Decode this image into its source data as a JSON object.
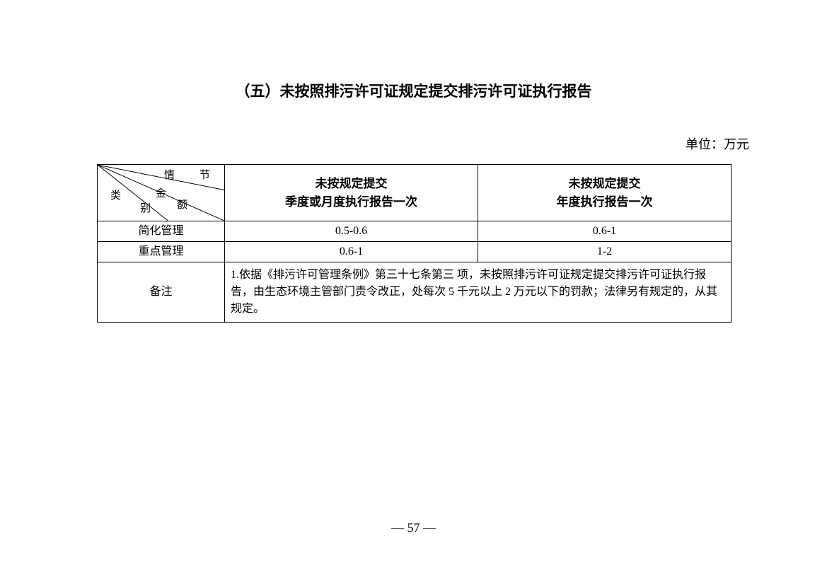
{
  "title": "（五）未按照排污许可证规定提交排污许可证执行报告",
  "unit": "单位：万元",
  "table": {
    "diagonal_labels": {
      "top1": "情",
      "top2": "节",
      "mid1": "金",
      "mid2": "额",
      "left1": "类",
      "left2": "别"
    },
    "col_headers": [
      "未按规定提交\n季度或月度执行报告一次",
      "未按规定提交\n年度执行报告一次"
    ],
    "rows": [
      {
        "label": "简化管理",
        "values": [
          "0.5-0.6",
          "0.6-1"
        ]
      },
      {
        "label": "重点管理",
        "values": [
          "0.6-1",
          "1-2"
        ]
      }
    ],
    "note_label": "备注",
    "note_text": "1.依据《排污许可管理条例》第三十七条第三 项，未按照排污许可证规定提交排污许可证执行报告，由生态环境主管部门责令改正，处每次 5 千元以上 2 万元以下的罚款；法律另有规定的，从其规定。"
  },
  "page_number": "— 57 —"
}
